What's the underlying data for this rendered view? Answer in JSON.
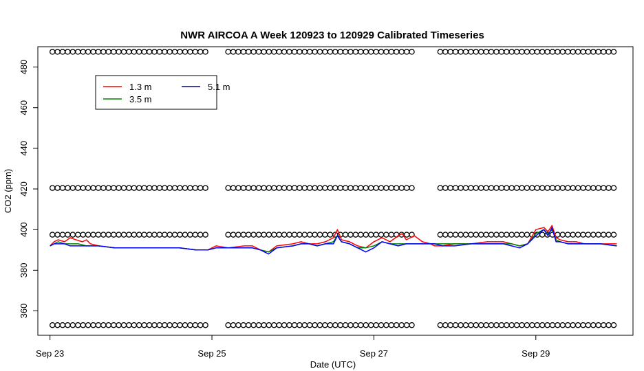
{
  "chart_data": {
    "type": "line",
    "title": "NWR AIRCOA A  Week 120923 to 120929  Calibrated Timeseries",
    "xlabel": "Date (UTC)",
    "ylabel": "CO2 (ppm)",
    "xlim": [
      -0.15,
      7.2
    ],
    "ylim": [
      348,
      490
    ],
    "x_ticks": [
      {
        "value": 0,
        "label": "Sep 23"
      },
      {
        "value": 2,
        "label": "Sep 25"
      },
      {
        "value": 4,
        "label": "Sep 27"
      },
      {
        "value": 6,
        "label": "Sep 29"
      }
    ],
    "y_ticks": [
      {
        "value": 360,
        "label": "360"
      },
      {
        "value": 380,
        "label": "380"
      },
      {
        "value": 400,
        "label": "400"
      },
      {
        "value": 420,
        "label": "420"
      },
      {
        "value": 440,
        "label": "440"
      },
      {
        "value": 460,
        "label": "460"
      },
      {
        "value": 480,
        "label": "480"
      }
    ],
    "x_unit": "days since Sep 23 00:00 UTC",
    "grid": false,
    "legend_position": "top-left",
    "series": [
      {
        "name": "1.3 m",
        "color": "#ff0000",
        "points": [
          [
            0,
            392
          ],
          [
            0.05,
            394
          ],
          [
            0.1,
            395
          ],
          [
            0.18,
            394
          ],
          [
            0.25,
            396
          ],
          [
            0.32,
            395
          ],
          [
            0.4,
            394
          ],
          [
            0.45,
            395
          ],
          [
            0.5,
            393
          ],
          [
            0.6,
            392
          ],
          [
            0.8,
            391
          ],
          [
            1.0,
            391
          ],
          [
            1.2,
            391
          ],
          [
            1.4,
            391
          ],
          [
            1.6,
            391
          ],
          [
            1.8,
            390
          ],
          [
            1.95,
            390
          ],
          [
            2.05,
            392
          ],
          [
            2.2,
            391
          ],
          [
            2.4,
            392
          ],
          [
            2.5,
            392
          ],
          [
            2.6,
            390
          ],
          [
            2.7,
            389
          ],
          [
            2.8,
            392
          ],
          [
            3.0,
            393
          ],
          [
            3.1,
            394
          ],
          [
            3.2,
            393
          ],
          [
            3.3,
            393
          ],
          [
            3.4,
            394
          ],
          [
            3.5,
            396
          ],
          [
            3.55,
            400
          ],
          [
            3.6,
            395
          ],
          [
            3.7,
            394
          ],
          [
            3.8,
            392
          ],
          [
            3.9,
            391
          ],
          [
            4.0,
            394
          ],
          [
            4.1,
            396
          ],
          [
            4.2,
            394
          ],
          [
            4.3,
            397
          ],
          [
            4.35,
            398
          ],
          [
            4.4,
            395
          ],
          [
            4.5,
            397
          ],
          [
            4.6,
            394
          ],
          [
            4.7,
            393
          ],
          [
            4.75,
            392
          ],
          [
            4.85,
            392
          ],
          [
            5.0,
            393
          ],
          [
            5.2,
            393
          ],
          [
            5.4,
            394
          ],
          [
            5.6,
            394
          ],
          [
            5.7,
            393
          ],
          [
            5.8,
            392
          ],
          [
            5.9,
            393
          ],
          [
            6.0,
            400
          ],
          [
            6.1,
            401
          ],
          [
            6.15,
            399
          ],
          [
            6.2,
            402
          ],
          [
            6.25,
            396
          ],
          [
            6.3,
            395
          ],
          [
            6.4,
            394
          ],
          [
            6.5,
            394
          ],
          [
            6.6,
            393
          ],
          [
            6.8,
            393
          ],
          [
            7.0,
            393
          ]
        ]
      },
      {
        "name": "3.5 m",
        "color": "#008000",
        "points": [
          [
            0,
            392
          ],
          [
            0.05,
            393
          ],
          [
            0.1,
            394
          ],
          [
            0.18,
            393
          ],
          [
            0.25,
            393
          ],
          [
            0.35,
            393
          ],
          [
            0.45,
            392
          ],
          [
            0.5,
            392
          ],
          [
            0.6,
            392
          ],
          [
            0.8,
            391
          ],
          [
            1.0,
            391
          ],
          [
            1.2,
            391
          ],
          [
            1.4,
            391
          ],
          [
            1.6,
            391
          ],
          [
            1.8,
            390
          ],
          [
            1.95,
            390
          ],
          [
            2.05,
            391
          ],
          [
            2.2,
            391
          ],
          [
            2.4,
            391
          ],
          [
            2.5,
            391
          ],
          [
            2.6,
            390
          ],
          [
            2.7,
            389
          ],
          [
            2.8,
            391
          ],
          [
            3.0,
            392
          ],
          [
            3.1,
            393
          ],
          [
            3.2,
            393
          ],
          [
            3.3,
            392
          ],
          [
            3.4,
            393
          ],
          [
            3.5,
            394
          ],
          [
            3.55,
            397
          ],
          [
            3.6,
            394
          ],
          [
            3.7,
            393
          ],
          [
            3.8,
            391
          ],
          [
            3.9,
            391
          ],
          [
            4.0,
            392
          ],
          [
            4.1,
            394
          ],
          [
            4.2,
            393
          ],
          [
            4.3,
            393
          ],
          [
            4.4,
            393
          ],
          [
            4.5,
            393
          ],
          [
            4.6,
            393
          ],
          [
            4.7,
            393
          ],
          [
            4.75,
            393
          ],
          [
            4.85,
            393
          ],
          [
            5.0,
            393
          ],
          [
            5.2,
            393
          ],
          [
            5.4,
            393
          ],
          [
            5.6,
            393
          ],
          [
            5.7,
            393
          ],
          [
            5.8,
            392
          ],
          [
            5.9,
            393
          ],
          [
            6.0,
            398
          ],
          [
            6.1,
            400
          ],
          [
            6.15,
            398
          ],
          [
            6.2,
            400
          ],
          [
            6.25,
            395
          ],
          [
            6.3,
            394
          ],
          [
            6.4,
            393
          ],
          [
            6.5,
            393
          ],
          [
            6.6,
            393
          ],
          [
            6.8,
            393
          ],
          [
            7.0,
            392
          ]
        ]
      },
      {
        "name": "5.1 m",
        "color": "#0000ff",
        "points": [
          [
            0,
            392
          ],
          [
            0.05,
            393
          ],
          [
            0.1,
            393
          ],
          [
            0.18,
            393
          ],
          [
            0.25,
            392
          ],
          [
            0.35,
            392
          ],
          [
            0.45,
            392
          ],
          [
            0.5,
            392
          ],
          [
            0.6,
            392
          ],
          [
            0.8,
            391
          ],
          [
            1.0,
            391
          ],
          [
            1.2,
            391
          ],
          [
            1.4,
            391
          ],
          [
            1.6,
            391
          ],
          [
            1.8,
            390
          ],
          [
            1.95,
            390
          ],
          [
            2.05,
            391
          ],
          [
            2.2,
            391
          ],
          [
            2.4,
            391
          ],
          [
            2.5,
            391
          ],
          [
            2.6,
            390
          ],
          [
            2.7,
            388
          ],
          [
            2.8,
            391
          ],
          [
            3.0,
            392
          ],
          [
            3.1,
            393
          ],
          [
            3.2,
            393
          ],
          [
            3.3,
            392
          ],
          [
            3.4,
            393
          ],
          [
            3.5,
            393
          ],
          [
            3.55,
            397
          ],
          [
            3.6,
            394
          ],
          [
            3.7,
            393
          ],
          [
            3.8,
            391
          ],
          [
            3.9,
            389
          ],
          [
            4.0,
            391
          ],
          [
            4.1,
            394
          ],
          [
            4.2,
            393
          ],
          [
            4.3,
            392
          ],
          [
            4.4,
            393
          ],
          [
            4.5,
            393
          ],
          [
            4.6,
            393
          ],
          [
            4.7,
            393
          ],
          [
            4.75,
            393
          ],
          [
            4.85,
            392
          ],
          [
            5.0,
            392
          ],
          [
            5.2,
            393
          ],
          [
            5.4,
            393
          ],
          [
            5.6,
            393
          ],
          [
            5.7,
            392
          ],
          [
            5.8,
            391
          ],
          [
            5.9,
            393
          ],
          [
            6.0,
            397
          ],
          [
            6.1,
            400
          ],
          [
            6.15,
            397
          ],
          [
            6.2,
            401
          ],
          [
            6.25,
            394
          ],
          [
            6.3,
            394
          ],
          [
            6.4,
            393
          ],
          [
            6.5,
            393
          ],
          [
            6.6,
            393
          ],
          [
            6.8,
            393
          ],
          [
            7.0,
            392
          ]
        ]
      }
    ],
    "reference_markers": {
      "marker": "open circle",
      "levels": [
        {
          "y": 487.5,
          "segments": [
            [
              0.03,
              1.95
            ],
            [
              2.2,
              4.5
            ],
            [
              4.82,
              6.98
            ]
          ]
        },
        {
          "y": 420.5,
          "segments": [
            [
              0.03,
              1.95
            ],
            [
              2.2,
              4.5
            ],
            [
              4.82,
              6.98
            ]
          ]
        },
        {
          "y": 397.5,
          "segments": [
            [
              0.03,
              1.95
            ],
            [
              2.2,
              4.5
            ],
            [
              4.82,
              6.98
            ]
          ]
        },
        {
          "y": 353,
          "segments": [
            [
              0.03,
              1.95
            ],
            [
              2.2,
              4.5
            ],
            [
              4.82,
              6.98
            ]
          ]
        }
      ],
      "spacing": 0.063
    },
    "legend": {
      "entries": [
        {
          "label": "1.3 m",
          "color": "#ff0000"
        },
        {
          "label": "5.1 m",
          "color": "#000080"
        },
        {
          "label": "3.5 m",
          "color": "#008000"
        }
      ]
    }
  }
}
